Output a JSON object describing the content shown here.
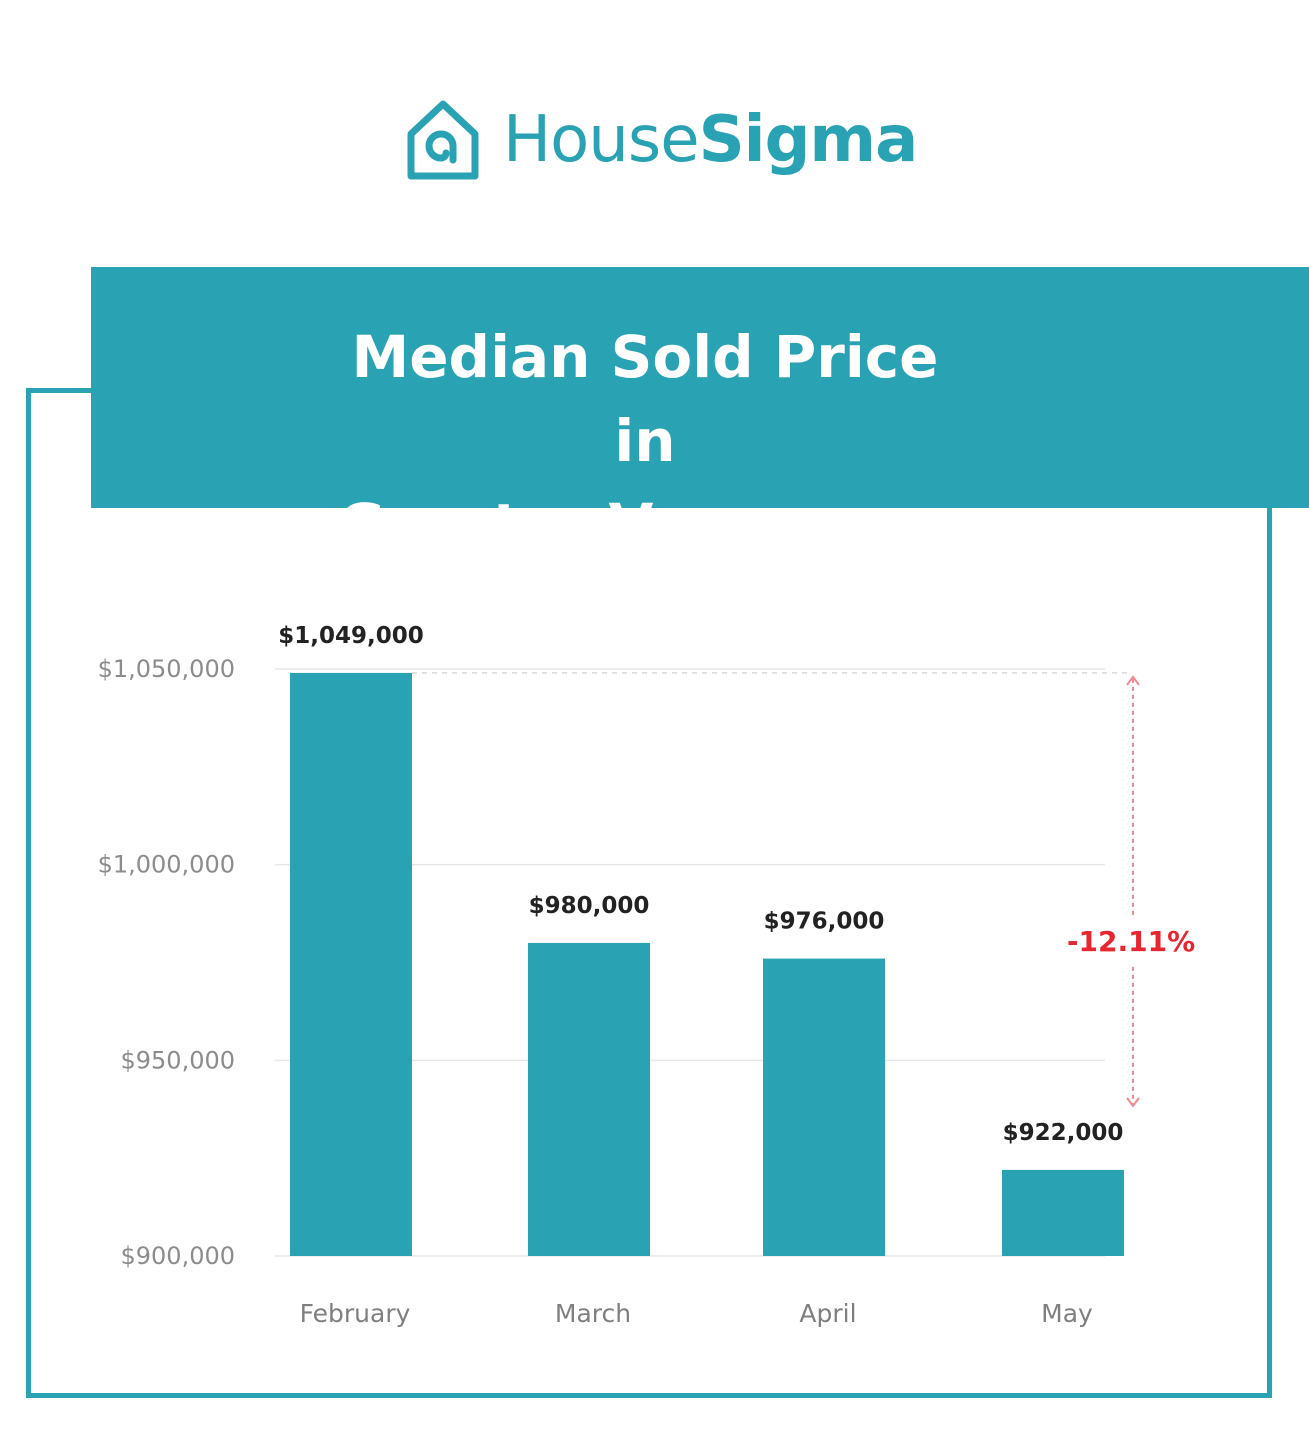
{
  "brand": {
    "name_part1": "House",
    "name_part2": "Sigma",
    "logo_icon": "house-spiral-icon",
    "color": "#29a3b3"
  },
  "chart_data": {
    "type": "bar",
    "title": "Median Sold Price in\nGreater Vancouver",
    "categories": [
      "February",
      "March",
      "April",
      "May"
    ],
    "values": [
      1049000,
      980000,
      976000,
      922000
    ],
    "value_labels": [
      "$1,049,000",
      "$980,000",
      "$976,000",
      "$922,000"
    ],
    "ylim": [
      900000,
      1050000
    ],
    "yticks": [
      900000,
      950000,
      1000000,
      1050000
    ],
    "ytick_labels": [
      "$900,000",
      "$950,000",
      "$1,000,000",
      "$1,050,000"
    ],
    "grid": true,
    "bar_color": "#29a3b3",
    "annotation": {
      "text": "-12.11%",
      "from": 1049000,
      "to": 922000,
      "color": "#e8262f"
    }
  }
}
